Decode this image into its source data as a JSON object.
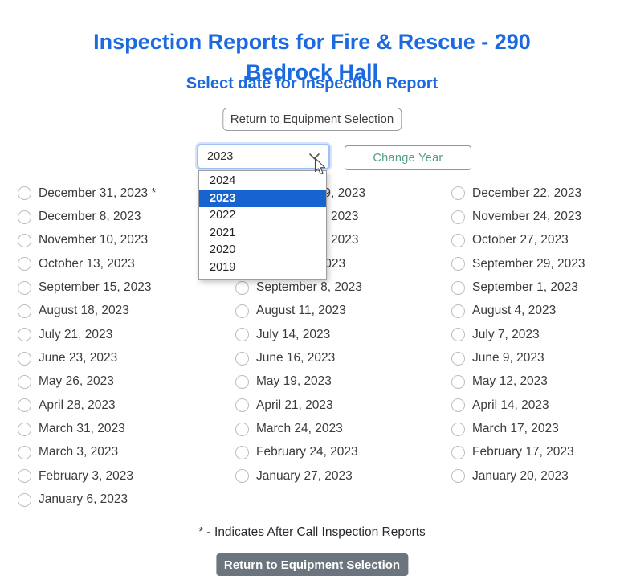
{
  "header": {
    "title_lines": [
      "Inspection Reports for Fire & Rescue - 290",
      "Bedrock Hall"
    ],
    "subtitle": "Select date for Inspection Report"
  },
  "top_button": {
    "label": "Return to Equipment Selection"
  },
  "year_selector": {
    "value": "2023",
    "options": [
      "2024",
      "2023",
      "2022",
      "2021",
      "2020",
      "2019"
    ],
    "selected_option": "2023",
    "change_button_label": "Change Year"
  },
  "date_columns": {
    "col1": [
      "December 31, 2023 *",
      "December 8, 2023",
      "November 10, 2023",
      "October 13, 2023",
      "September 15, 2023",
      "August 18, 2023",
      "July 21, 2023",
      "June 23, 2023",
      "May 26, 2023",
      "April 28, 2023",
      "March 31, 2023",
      "March 3, 2023",
      "February 3, 2023",
      "January 6, 2023"
    ],
    "col2": [
      "December 29, 2023",
      "December 1, 2023",
      "November 3, 2023",
      "October 6, 2023",
      "September 8, 2023",
      "August 11, 2023",
      "July 14, 2023",
      "June 16, 2023",
      "May 19, 2023",
      "April 21, 2023",
      "March 24, 2023",
      "February 24, 2023",
      "January 27, 2023"
    ],
    "col3": [
      "December 22, 2023",
      "November 24, 2023",
      "October 27, 2023",
      "September 29, 2023",
      "September 1, 2023",
      "August 4, 2023",
      "July 7, 2023",
      "June 9, 2023",
      "May 12, 2023",
      "April 14, 2023",
      "March 17, 2023",
      "February 17, 2023",
      "January 20, 2023"
    ]
  },
  "footnote": "* - Indicates After Call Inspection Reports",
  "bottom_button": {
    "label": "Return to Equipment Selection"
  },
  "colors": {
    "title_blue": "#1b6ae0",
    "dropdown_highlight": "#1763cf",
    "green_accent": "#53a07f",
    "bottom_button_gray": "#6c757d",
    "select_focus_border": "#9ec0f6"
  }
}
